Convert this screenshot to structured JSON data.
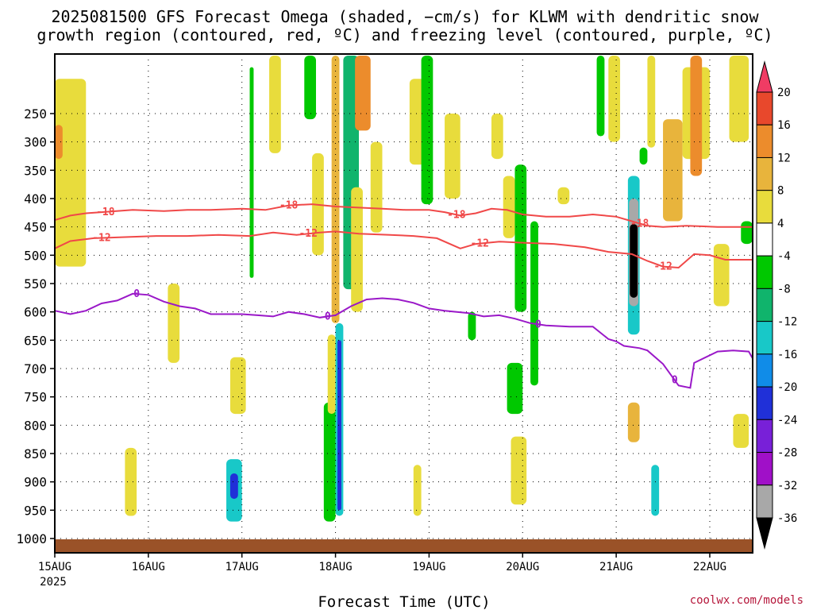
{
  "title": {
    "line1": "2025081500 GFS Forecast Omega (shaded, −cm/s) for KLWM with dendritic snow",
    "line2": "growth region (contoured, red, ºC) and freezing level (contoured, purple, ºC)"
  },
  "credit": "coolwx.com/models",
  "chart_data": {
    "type": "heatmap",
    "xlabel": "Forecast Time (UTC)",
    "ylabel": "",
    "x_range_hours": [
      0,
      179
    ],
    "x_ticks": [
      {
        "hour": 0,
        "label": "15AUG",
        "sub": "2025"
      },
      {
        "hour": 24,
        "label": "16AUG",
        "sub": ""
      },
      {
        "hour": 48,
        "label": "17AUG",
        "sub": ""
      },
      {
        "hour": 72,
        "label": "18AUG",
        "sub": ""
      },
      {
        "hour": 96,
        "label": "19AUG",
        "sub": ""
      },
      {
        "hour": 120,
        "label": "20AUG",
        "sub": ""
      },
      {
        "hour": 144,
        "label": "21AUG",
        "sub": ""
      },
      {
        "hour": 168,
        "label": "22AUG",
        "sub": ""
      }
    ],
    "y_axis": "pressure (hPa), reversed",
    "y_ticks": [
      250,
      300,
      350,
      400,
      450,
      500,
      550,
      600,
      650,
      700,
      750,
      800,
      850,
      900,
      950,
      1000
    ],
    "y_range": [
      200,
      1000
    ],
    "grid": true,
    "colorbar": {
      "levels": [
        20,
        16,
        12,
        8,
        4,
        -4,
        -8,
        -12,
        -16,
        -20,
        -24,
        -28,
        -32,
        -36
      ],
      "colors": [
        "#f03c64",
        "#e8482c",
        "#ec8c2c",
        "#e8b43c",
        "#e8dc3c",
        "#ffffff",
        "#00c800",
        "#10b46c",
        "#18c8c8",
        "#108ce8",
        "#2030d8",
        "#7820d8",
        "#a010c8",
        "#a8a8a8",
        "#000000"
      ]
    },
    "shaded_regions": [
      {
        "t0": 0,
        "t1": 8,
        "p0": 220,
        "p1": 520,
        "value": 6
      },
      {
        "t0": 0,
        "t1": 2,
        "p0": 270,
        "p1": 330,
        "value": 14
      },
      {
        "t0": 18,
        "t1": 21,
        "p0": 840,
        "p1": 960,
        "value": 6
      },
      {
        "t0": 29,
        "t1": 32,
        "p0": 550,
        "p1": 690,
        "value": 5
      },
      {
        "t0": 44,
        "t1": 48,
        "p0": 860,
        "p1": 970,
        "value": -14
      },
      {
        "t0": 45,
        "t1": 47,
        "p0": 885,
        "p1": 930,
        "value": -22
      },
      {
        "t0": 45,
        "t1": 49,
        "p0": 680,
        "p1": 780,
        "value": 6
      },
      {
        "t0": 50,
        "t1": 51,
        "p0": 210,
        "p1": 540,
        "value": -6
      },
      {
        "t0": 55,
        "t1": 58,
        "p0": 200,
        "p1": 320,
        "value": 5
      },
      {
        "t0": 64,
        "t1": 67,
        "p0": 200,
        "p1": 260,
        "value": -6
      },
      {
        "t0": 66,
        "t1": 69,
        "p0": 320,
        "p1": 500,
        "value": 5
      },
      {
        "t0": 69,
        "t1": 72,
        "p0": 760,
        "p1": 970,
        "value": -6
      },
      {
        "t0": 70,
        "t1": 72,
        "p0": 640,
        "p1": 780,
        "value": 6
      },
      {
        "t0": 71,
        "t1": 73,
        "p0": 200,
        "p1": 620,
        "value": 9
      },
      {
        "t0": 72,
        "t1": 74,
        "p0": 620,
        "p1": 960,
        "value": -14
      },
      {
        "t0": 72.5,
        "t1": 73.5,
        "p0": 650,
        "p1": 950,
        "value": -22
      },
      {
        "t0": 74,
        "t1": 78,
        "p0": 200,
        "p1": 560,
        "value": -12
      },
      {
        "t0": 77,
        "t1": 81,
        "p0": 200,
        "p1": 280,
        "value": 12
      },
      {
        "t0": 76,
        "t1": 79,
        "p0": 380,
        "p1": 600,
        "value": 6
      },
      {
        "t0": 81,
        "t1": 84,
        "p0": 300,
        "p1": 460,
        "value": 5
      },
      {
        "t0": 91,
        "t1": 95,
        "p0": 220,
        "p1": 340,
        "value": 5
      },
      {
        "t0": 92,
        "t1": 94,
        "p0": 870,
        "p1": 960,
        "value": 6
      },
      {
        "t0": 94,
        "t1": 97,
        "p0": 200,
        "p1": 410,
        "value": -6
      },
      {
        "t0": 100,
        "t1": 104,
        "p0": 250,
        "p1": 400,
        "value": 5
      },
      {
        "t0": 106,
        "t1": 108,
        "p0": 600,
        "p1": 650,
        "value": -6
      },
      {
        "t0": 112,
        "t1": 115,
        "p0": 250,
        "p1": 330,
        "value": 5
      },
      {
        "t0": 115,
        "t1": 118,
        "p0": 360,
        "p1": 470,
        "value": 5
      },
      {
        "t0": 118,
        "t1": 121,
        "p0": 340,
        "p1": 600,
        "value": -6
      },
      {
        "t0": 116,
        "t1": 120,
        "p0": 690,
        "p1": 780,
        "value": -6
      },
      {
        "t0": 117,
        "t1": 121,
        "p0": 820,
        "p1": 940,
        "value": 6
      },
      {
        "t0": 122,
        "t1": 124,
        "p0": 440,
        "p1": 730,
        "value": -6
      },
      {
        "t0": 129,
        "t1": 132,
        "p0": 380,
        "p1": 410,
        "value": 5
      },
      {
        "t0": 139,
        "t1": 141,
        "p0": 200,
        "p1": 290,
        "value": -6
      },
      {
        "t0": 142,
        "t1": 145,
        "p0": 200,
        "p1": 300,
        "value": 5
      },
      {
        "t0": 147,
        "t1": 150,
        "p0": 360,
        "p1": 640,
        "value": -14
      },
      {
        "t0": 147.3,
        "t1": 149.7,
        "p0": 400,
        "p1": 590,
        "value": -34
      },
      {
        "t0": 147.5,
        "t1": 149.5,
        "p0": 445,
        "p1": 575,
        "value": -40
      },
      {
        "t0": 147,
        "t1": 150,
        "p0": 760,
        "p1": 830,
        "value": 11
      },
      {
        "t0": 150,
        "t1": 152,
        "p0": 310,
        "p1": 340,
        "value": -8
      },
      {
        "t0": 152,
        "t1": 154,
        "p0": 200,
        "p1": 310,
        "value": 5
      },
      {
        "t0": 153,
        "t1": 155,
        "p0": 870,
        "p1": 960,
        "value": -14
      },
      {
        "t0": 156,
        "t1": 161,
        "p0": 260,
        "p1": 440,
        "value": 8
      },
      {
        "t0": 161,
        "t1": 168,
        "p0": 210,
        "p1": 330,
        "value": 6
      },
      {
        "t0": 163,
        "t1": 166,
        "p0": 200,
        "p1": 360,
        "value": 12
      },
      {
        "t0": 169,
        "t1": 173,
        "p0": 480,
        "p1": 590,
        "value": 5
      },
      {
        "t0": 173,
        "t1": 178,
        "p0": 200,
        "p1": 300,
        "value": 6
      },
      {
        "t0": 174,
        "t1": 178,
        "p0": 780,
        "p1": 840,
        "value": 6
      },
      {
        "t0": 176,
        "t1": 179,
        "p0": 440,
        "p1": 480,
        "value": -6
      }
    ],
    "contours": [
      {
        "name": "-18",
        "color": "#f04848",
        "labels": [
          {
            "hour": 13,
            "text": "-18"
          },
          {
            "hour": 60,
            "text": "-18"
          },
          {
            "hour": 103,
            "text": "-18"
          },
          {
            "hour": 150,
            "text": "-18"
          }
        ],
        "points": [
          [
            0,
            438
          ],
          [
            4,
            430
          ],
          [
            8,
            426
          ],
          [
            12,
            424
          ],
          [
            20,
            420
          ],
          [
            28,
            422
          ],
          [
            34,
            420
          ],
          [
            40,
            420
          ],
          [
            48,
            418
          ],
          [
            54,
            420
          ],
          [
            60,
            412
          ],
          [
            66,
            410
          ],
          [
            72,
            414
          ],
          [
            78,
            416
          ],
          [
            84,
            418
          ],
          [
            90,
            420
          ],
          [
            96,
            420
          ],
          [
            100,
            424
          ],
          [
            104,
            430
          ],
          [
            108,
            426
          ],
          [
            112,
            418
          ],
          [
            116,
            420
          ],
          [
            120,
            428
          ],
          [
            126,
            432
          ],
          [
            132,
            432
          ],
          [
            138,
            428
          ],
          [
            144,
            432
          ],
          [
            148,
            440
          ],
          [
            152,
            448
          ],
          [
            156,
            450
          ],
          [
            162,
            448
          ],
          [
            170,
            450
          ],
          [
            179,
            450
          ]
        ]
      },
      {
        "name": "-12",
        "color": "#f04848",
        "labels": [
          {
            "hour": 12,
            "text": "-12"
          },
          {
            "hour": 65,
            "text": "-12"
          },
          {
            "hour": 109,
            "text": "-12"
          },
          {
            "hour": 156,
            "text": "-12"
          }
        ],
        "points": [
          [
            0,
            488
          ],
          [
            4,
            475
          ],
          [
            10,
            470
          ],
          [
            18,
            468
          ],
          [
            26,
            466
          ],
          [
            34,
            466
          ],
          [
            42,
            464
          ],
          [
            50,
            466
          ],
          [
            56,
            460
          ],
          [
            62,
            464
          ],
          [
            68,
            460
          ],
          [
            72,
            458
          ],
          [
            78,
            462
          ],
          [
            86,
            464
          ],
          [
            92,
            466
          ],
          [
            98,
            470
          ],
          [
            104,
            488
          ],
          [
            108,
            480
          ],
          [
            114,
            476
          ],
          [
            120,
            478
          ],
          [
            128,
            480
          ],
          [
            136,
            486
          ],
          [
            142,
            494
          ],
          [
            148,
            498
          ],
          [
            152,
            510
          ],
          [
            156,
            520
          ],
          [
            160,
            522
          ],
          [
            164,
            498
          ],
          [
            168,
            500
          ],
          [
            172,
            508
          ],
          [
            179,
            508
          ]
        ]
      },
      {
        "name": "0",
        "color": "#9a18c8",
        "labels": [
          {
            "hour": 21,
            "text": "0"
          },
          {
            "hour": 70,
            "text": "0"
          },
          {
            "hour": 124,
            "text": "0"
          },
          {
            "hour": 159,
            "text": "0"
          }
        ],
        "points": [
          [
            0,
            598
          ],
          [
            4,
            604
          ],
          [
            8,
            598
          ],
          [
            12,
            585
          ],
          [
            16,
            580
          ],
          [
            20,
            568
          ],
          [
            24,
            570
          ],
          [
            28,
            582
          ],
          [
            32,
            590
          ],
          [
            36,
            594
          ],
          [
            40,
            604
          ],
          [
            44,
            604
          ],
          [
            48,
            604
          ],
          [
            52,
            606
          ],
          [
            56,
            608
          ],
          [
            60,
            600
          ],
          [
            64,
            604
          ],
          [
            68,
            610
          ],
          [
            72,
            606
          ],
          [
            76,
            590
          ],
          [
            80,
            578
          ],
          [
            84,
            576
          ],
          [
            88,
            578
          ],
          [
            92,
            584
          ],
          [
            96,
            594
          ],
          [
            100,
            598
          ],
          [
            106,
            602
          ],
          [
            110,
            608
          ],
          [
            114,
            606
          ],
          [
            118,
            612
          ],
          [
            122,
            620
          ],
          [
            126,
            624
          ],
          [
            132,
            626
          ],
          [
            138,
            626
          ],
          [
            142,
            648
          ],
          [
            144,
            652
          ],
          [
            146,
            660
          ],
          [
            150,
            664
          ],
          [
            152,
            668
          ],
          [
            156,
            692
          ],
          [
            160,
            730
          ],
          [
            163,
            734
          ],
          [
            164,
            690
          ],
          [
            170,
            670
          ],
          [
            174,
            668
          ],
          [
            178,
            670
          ],
          [
            179,
            682
          ]
        ]
      }
    ]
  }
}
